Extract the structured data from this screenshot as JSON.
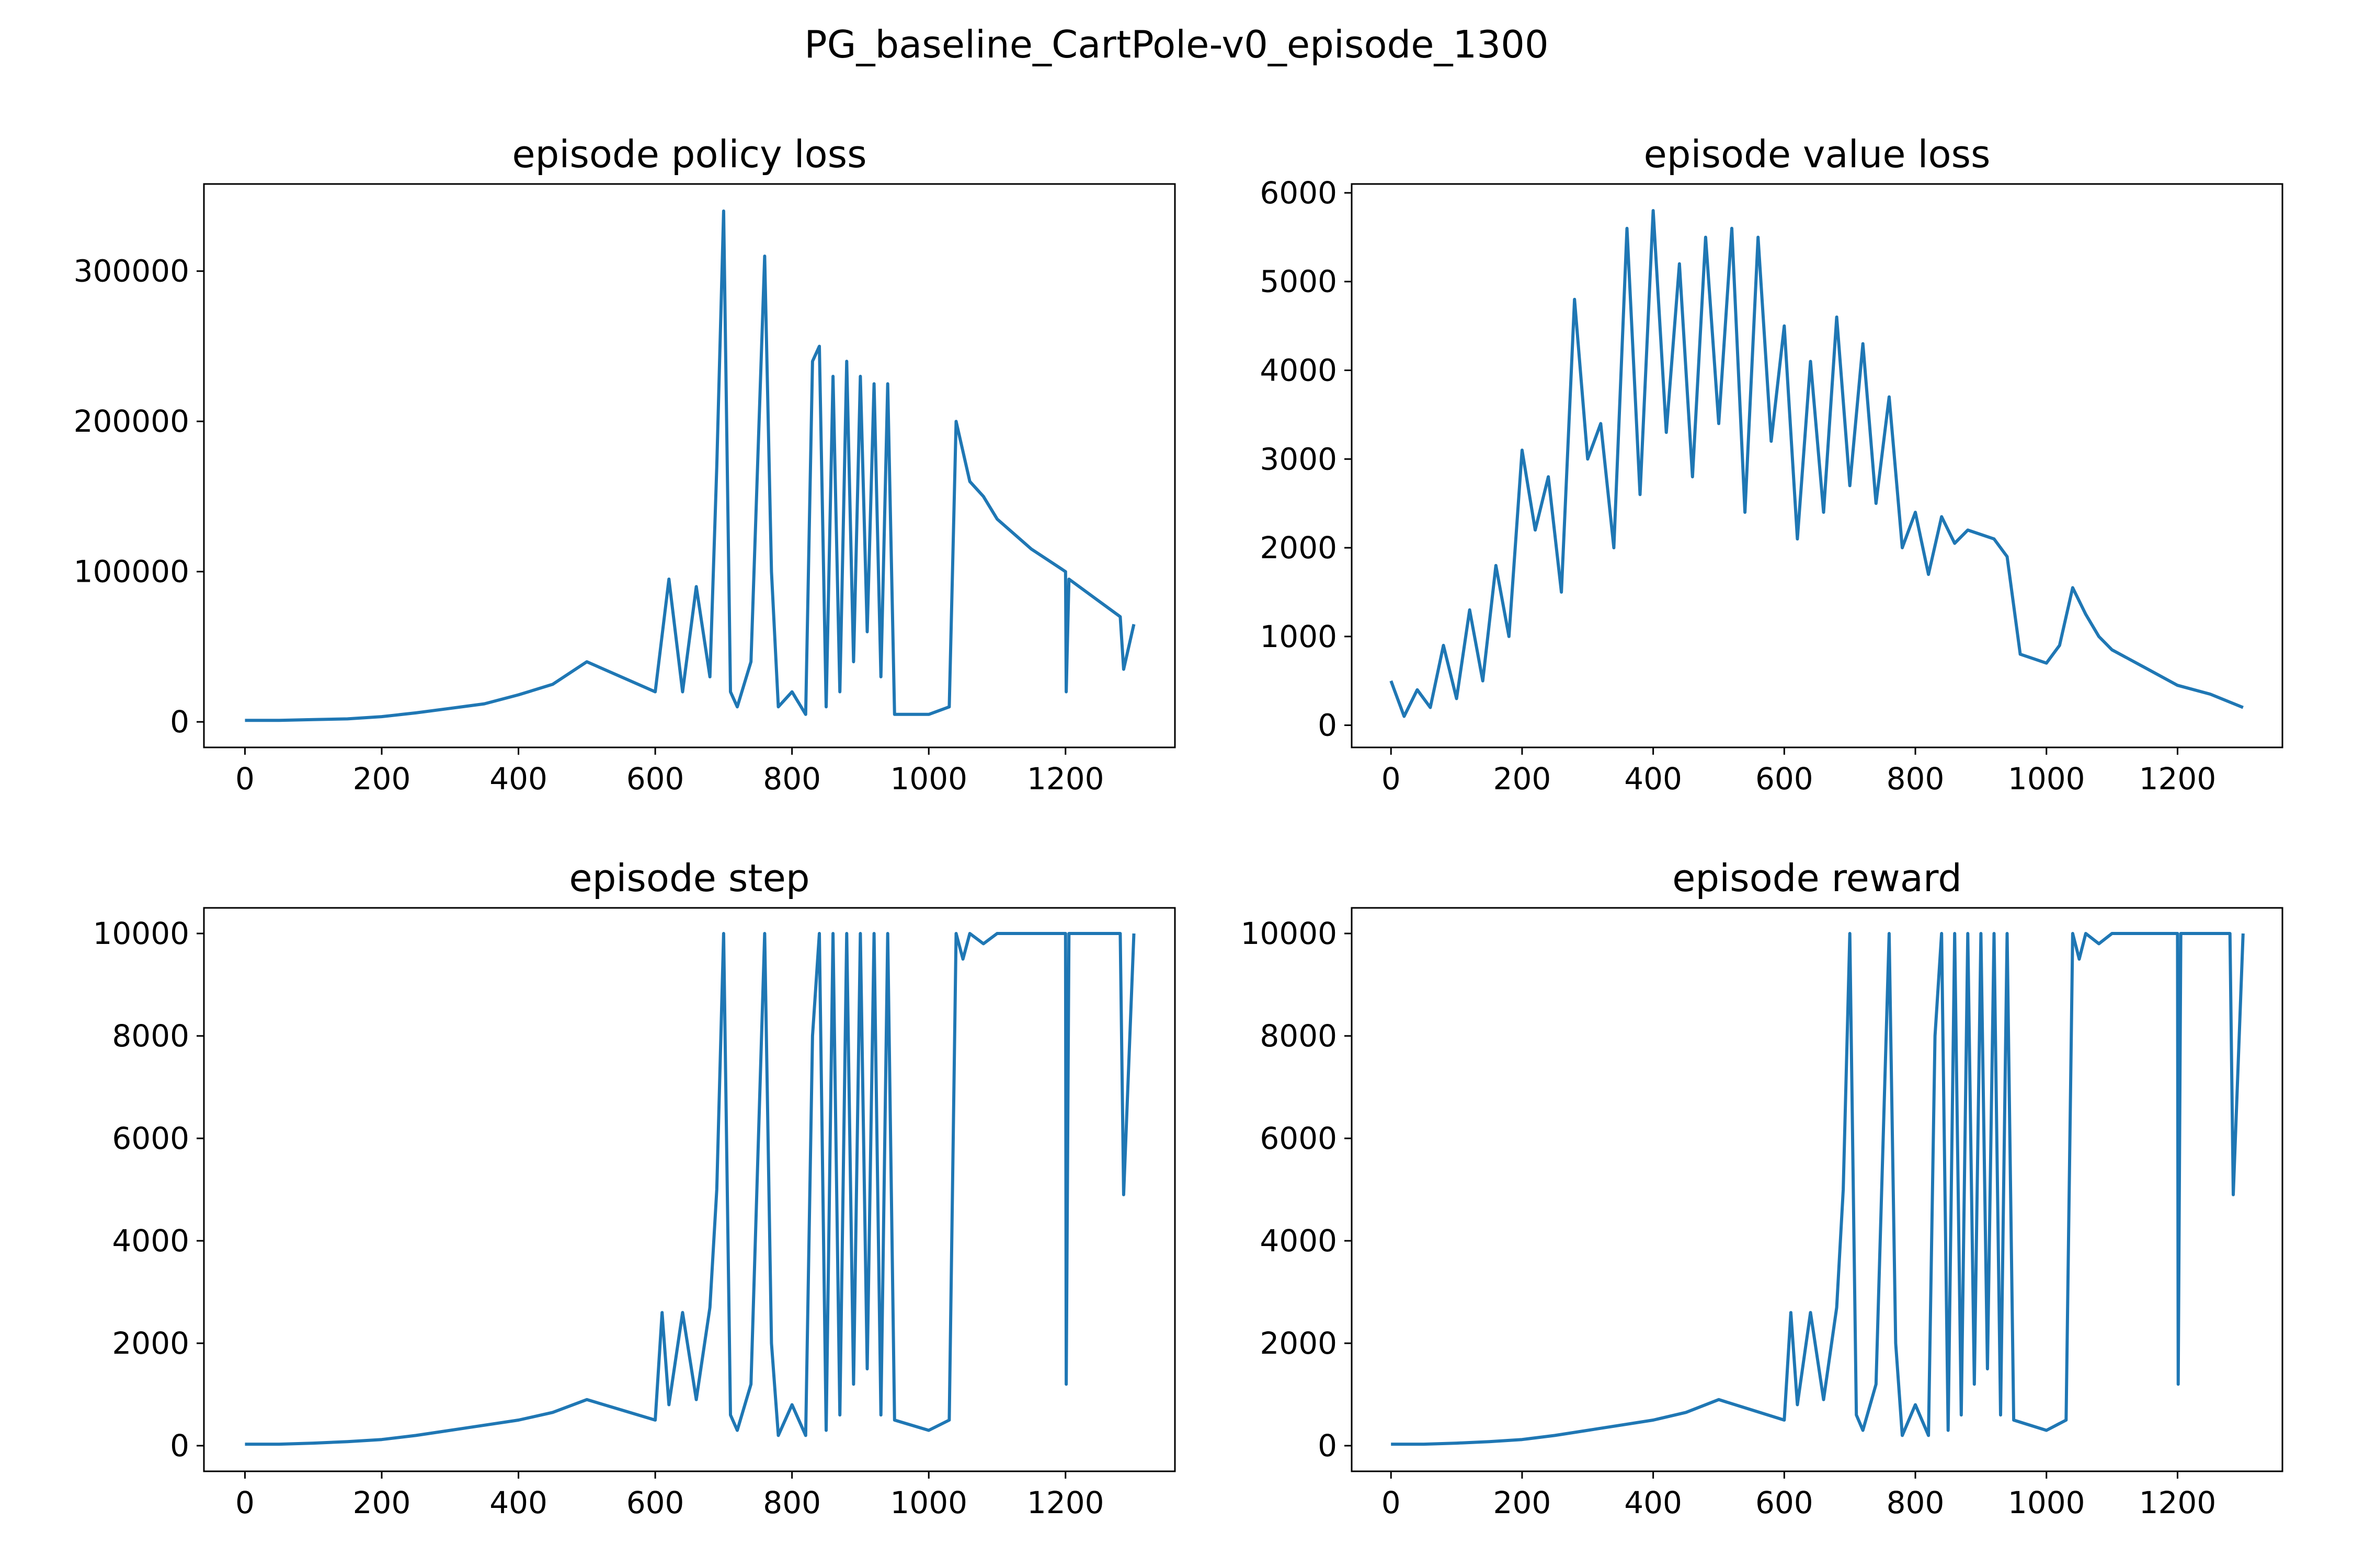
{
  "figure_title": "PG_baseline_CartPole-v0_episode_1300",
  "line_color": "#1f77b4",
  "chart_data": [
    {
      "type": "line",
      "title": "episode policy loss",
      "xlabel": "",
      "ylabel": "",
      "xlim": [
        -60,
        1360
      ],
      "ylim": [
        -17000,
        358000
      ],
      "xticks": [
        0,
        200,
        400,
        600,
        800,
        1000,
        1200
      ],
      "yticks": [
        0,
        100000,
        200000,
        300000
      ],
      "grid": false,
      "series": [
        {
          "x": [
            0,
            50,
            100,
            150,
            200,
            250,
            300,
            350,
            400,
            450,
            500,
            550,
            600,
            620,
            640,
            660,
            680,
            690,
            700,
            710,
            720,
            740,
            760,
            770,
            780,
            800,
            820,
            830,
            840,
            850,
            860,
            870,
            880,
            890,
            900,
            910,
            920,
            930,
            940,
            950,
            1000,
            1030,
            1040,
            1050,
            1060,
            1080,
            1100,
            1150,
            1200,
            1201,
            1205,
            1250,
            1280,
            1285,
            1300
          ],
          "y": [
            1000,
            1000,
            1500,
            2000,
            3500,
            6000,
            9000,
            12000,
            18000,
            25000,
            40000,
            30000,
            20000,
            95000,
            20000,
            90000,
            30000,
            170000,
            340000,
            20000,
            10000,
            40000,
            310000,
            100000,
            10000,
            20000,
            5000,
            240000,
            250000,
            10000,
            230000,
            20000,
            240000,
            40000,
            230000,
            60000,
            225000,
            30000,
            225000,
            5000,
            5000,
            10000,
            200000,
            180000,
            160000,
            150000,
            135000,
            115000,
            100000,
            20000,
            95000,
            80000,
            70000,
            35000,
            65000
          ]
        }
      ]
    },
    {
      "type": "line",
      "title": "episode value loss",
      "xlabel": "",
      "ylabel": "",
      "xlim": [
        -60,
        1360
      ],
      "ylim": [
        -250,
        6100
      ],
      "xticks": [
        0,
        200,
        400,
        600,
        800,
        1000,
        1200
      ],
      "yticks": [
        0,
        1000,
        2000,
        3000,
        4000,
        5000,
        6000
      ],
      "grid": false,
      "series": [
        {
          "x": [
            0,
            20,
            40,
            60,
            80,
            100,
            120,
            140,
            160,
            180,
            200,
            220,
            240,
            260,
            280,
            300,
            320,
            340,
            360,
            380,
            400,
            420,
            440,
            460,
            480,
            500,
            520,
            540,
            560,
            580,
            600,
            620,
            640,
            660,
            680,
            700,
            720,
            740,
            760,
            780,
            800,
            820,
            840,
            860,
            880,
            900,
            920,
            940,
            960,
            980,
            1000,
            1020,
            1040,
            1060,
            1080,
            1100,
            1150,
            1200,
            1250,
            1300
          ],
          "y": [
            500,
            100,
            400,
            200,
            900,
            300,
            1300,
            500,
            1800,
            1000,
            3100,
            2200,
            2800,
            1500,
            4800,
            3000,
            3400,
            2000,
            5600,
            2600,
            5800,
            3300,
            5200,
            2800,
            5500,
            3400,
            5600,
            2400,
            5500,
            3200,
            4500,
            2100,
            4100,
            2400,
            4600,
            2700,
            4300,
            2500,
            3700,
            2000,
            2400,
            1700,
            2350,
            2050,
            2200,
            2150,
            2100,
            1900,
            800,
            750,
            700,
            900,
            1550,
            1250,
            1000,
            850,
            650,
            450,
            350,
            200
          ]
        }
      ]
    },
    {
      "type": "line",
      "title": "episode step",
      "xlabel": "",
      "ylabel": "",
      "xlim": [
        -60,
        1360
      ],
      "ylim": [
        -500,
        10500
      ],
      "xticks": [
        0,
        200,
        400,
        600,
        800,
        1000,
        1200
      ],
      "yticks": [
        0,
        2000,
        4000,
        6000,
        8000,
        10000
      ],
      "grid": false,
      "series": [
        {
          "x": [
            0,
            50,
            100,
            150,
            200,
            250,
            300,
            350,
            400,
            450,
            500,
            550,
            600,
            610,
            620,
            640,
            660,
            680,
            690,
            700,
            710,
            720,
            740,
            760,
            770,
            780,
            800,
            820,
            830,
            840,
            850,
            860,
            870,
            880,
            890,
            900,
            910,
            920,
            930,
            940,
            950,
            1000,
            1030,
            1040,
            1050,
            1060,
            1080,
            1100,
            1150,
            1200,
            1201,
            1205,
            1250,
            1280,
            1285,
            1300
          ],
          "y": [
            30,
            30,
            50,
            80,
            120,
            200,
            300,
            400,
            500,
            650,
            900,
            700,
            500,
            2600,
            800,
            2600,
            900,
            2700,
            5000,
            10000,
            600,
            300,
            1200,
            10000,
            2000,
            200,
            800,
            200,
            8000,
            10000,
            300,
            10000,
            600,
            10000,
            1200,
            10000,
            1500,
            10000,
            600,
            10000,
            500,
            300,
            500,
            10000,
            9500,
            10000,
            9800,
            10000,
            10000,
            10000,
            1200,
            10000,
            10000,
            10000,
            4900,
            10000
          ]
        }
      ]
    },
    {
      "type": "line",
      "title": "episode reward",
      "xlabel": "",
      "ylabel": "",
      "xlim": [
        -60,
        1360
      ],
      "ylim": [
        -500,
        10500
      ],
      "xticks": [
        0,
        200,
        400,
        600,
        800,
        1000,
        1200
      ],
      "yticks": [
        0,
        2000,
        4000,
        6000,
        8000,
        10000
      ],
      "grid": false,
      "series": [
        {
          "x": [
            0,
            50,
            100,
            150,
            200,
            250,
            300,
            350,
            400,
            450,
            500,
            550,
            600,
            610,
            620,
            640,
            660,
            680,
            690,
            700,
            710,
            720,
            740,
            760,
            770,
            780,
            800,
            820,
            830,
            840,
            850,
            860,
            870,
            880,
            890,
            900,
            910,
            920,
            930,
            940,
            950,
            1000,
            1030,
            1040,
            1050,
            1060,
            1080,
            1100,
            1150,
            1200,
            1201,
            1205,
            1250,
            1280,
            1285,
            1300
          ],
          "y": [
            30,
            30,
            50,
            80,
            120,
            200,
            300,
            400,
            500,
            650,
            900,
            700,
            500,
            2600,
            800,
            2600,
            900,
            2700,
            5000,
            10000,
            600,
            300,
            1200,
            10000,
            2000,
            200,
            800,
            200,
            8000,
            10000,
            300,
            10000,
            600,
            10000,
            1200,
            10000,
            1500,
            10000,
            600,
            10000,
            500,
            300,
            500,
            10000,
            9500,
            10000,
            9800,
            10000,
            10000,
            10000,
            1200,
            10000,
            10000,
            10000,
            4900,
            10000
          ]
        }
      ]
    }
  ]
}
